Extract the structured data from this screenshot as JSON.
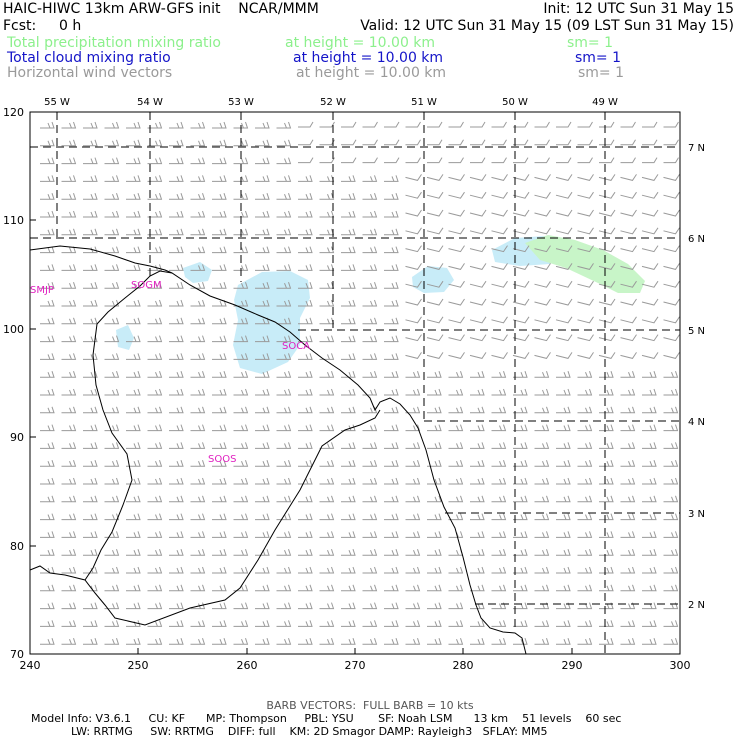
{
  "header": {
    "line1_left": "HAIC-HIWC 13km ARW-GFS init    NCAR/MMM",
    "line1_right": "Init: 12 UTC Sun 31 May 15",
    "fcst_label": "Fcst:",
    "fcst_value": "0 h",
    "valid": "Valid: 12 UTC Sun 31 May 15 (09 LST Sun 31 May 15)",
    "fields": [
      {
        "name": "Total precipitation mixing ratio",
        "height": "at height = 10.00 km",
        "sm": "sm= 1",
        "color": "#8cf08c"
      },
      {
        "name": "Total cloud mixing ratio",
        "height": "at height = 10.00 km",
        "sm": "sm= 1",
        "color": "#1414c8"
      },
      {
        "name": "Horizontal wind vectors",
        "height": "at height = 10.00 km",
        "sm": "sm= 1",
        "color": "#9a9a9a"
      }
    ]
  },
  "map": {
    "x_axis_ticks": [
      "240",
      "250",
      "260",
      "270",
      "280",
      "290",
      "300"
    ],
    "y_axis_ticks": [
      "70",
      "80",
      "90",
      "100",
      "110",
      "120"
    ],
    "lon_labels": [
      "55 W",
      "54 W",
      "53 W",
      "52 W",
      "51 W",
      "50 W",
      "49 W"
    ],
    "lat_labels": [
      "7 N",
      "6 N",
      "5 N",
      "4 N",
      "3 N",
      "2 N"
    ],
    "stations": [
      "SMJP",
      "SOGM",
      "SOCA",
      "SOOS"
    ],
    "station_color": "#e020c0",
    "cloud_color": "#c8ecf8",
    "precip_color": "#c8f5c8",
    "barb_color": "#9a9a9a"
  },
  "footer": {
    "barb_note": "BARB VECTORS:  FULL BARB = 10 kts",
    "model_line1": "Model Info: V3.6.1     CU: KF      MP: Thompson     PBL: YSU       SF: Noah LSM      13 km    51 levels    60 sec",
    "model_line2": "LW: RRTMG     SW: RRTMG    DIFF: full    KM: 2D Smagor DAMP: Rayleigh3   SFLAY: MM5"
  }
}
